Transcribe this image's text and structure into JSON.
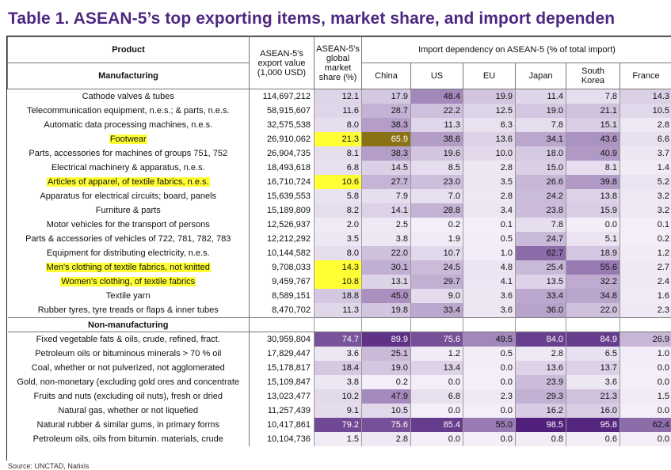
{
  "title": "Table 1. ASEAN-5’s top exporting items, market share, and import dependen",
  "source": "Source: UNCTAD, Natixis",
  "header": {
    "product": "Product",
    "export_value": "ASEAN-5's export value (1,000 USD)",
    "global_share": "ASEAN-5's global market share (%)",
    "dependency": "Import dependency on ASEAN-5 (% of total import)",
    "countries": [
      "China",
      "US",
      "EU",
      "Japan",
      "South Korea",
      "France"
    ]
  },
  "sections": [
    {
      "label": "Manufacturing",
      "rows": [
        {
          "name": "Cathode valves & tubes",
          "export": "114,697,212",
          "values": [
            "12.1",
            "17.9",
            "48.4",
            "19.9",
            "11.4",
            "7.8",
            "14.3"
          ]
        },
        {
          "name": "Telecommunication equipment, n.e.s.; & parts, n.e.s.",
          "export": "58,915,607",
          "values": [
            "11.6",
            "28.7",
            "22.2",
            "12.5",
            "19.0",
            "21.1",
            "10.5"
          ]
        },
        {
          "name": "Automatic data processing machines, n.e.s.",
          "export": "32,575,538",
          "values": [
            "8.0",
            "38.3",
            "11.3",
            "6.3",
            "7.8",
            "15.1",
            "2.8"
          ]
        },
        {
          "name": "Footwear",
          "export": "26,910,062",
          "values": [
            "21.3",
            "65.9",
            "38.6",
            "13.6",
            "34.1",
            "43.6",
            "6.6"
          ],
          "highlight": true
        },
        {
          "name": "Parts, accessories for machines of groups 751, 752",
          "export": "26,904,735",
          "values": [
            "8.1",
            "38.3",
            "19.6",
            "10.0",
            "18.0",
            "40.9",
            "3.7"
          ]
        },
        {
          "name": "Electrical machinery & apparatus, n.e.s.",
          "export": "18,493,618",
          "values": [
            "6.8",
            "14.5",
            "8.5",
            "2.8",
            "15.0",
            "8.1",
            "1.4"
          ]
        },
        {
          "name": "Articles of apparel, of textile fabrics, n.e.s.",
          "export": "16,710,724",
          "values": [
            "10.6",
            "27.7",
            "23.0",
            "3.5",
            "26.6",
            "39.8",
            "5.2"
          ],
          "highlight": true
        },
        {
          "name": "Apparatus for electrical circuits; board, panels",
          "export": "15,639,553",
          "values": [
            "5.8",
            "7.9",
            "7.0",
            "2.8",
            "24.2",
            "13.8",
            "3.2"
          ]
        },
        {
          "name": "Furniture & parts",
          "export": "15,189,809",
          "values": [
            "8.2",
            "14.1",
            "28.8",
            "3.4",
            "23.8",
            "15.9",
            "3.2"
          ]
        },
        {
          "name": "Motor vehicles for the transport of persons",
          "export": "12,526,937",
          "values": [
            "2.0",
            "2.5",
            "0.2",
            "0.1",
            "7.8",
            "0.0",
            "0.1"
          ]
        },
        {
          "name": "Parts & accessories of vehicles of 722, 781, 782, 783",
          "export": "12,212,292",
          "values": [
            "3.5",
            "3.8",
            "1.9",
            "0.5",
            "24.7",
            "5.1",
            "0.2"
          ]
        },
        {
          "name": "Equipment for distributing electricity, n.e.s.",
          "export": "10,144,582",
          "values": [
            "8.0",
            "22.0",
            "10.7",
            "1.0",
            "62.7",
            "18.9",
            "1.2"
          ]
        },
        {
          "name": "Men's clothing of textile fabrics, not knitted",
          "export": "9,708,033",
          "values": [
            "14.3",
            "30.1",
            "24.5",
            "4.8",
            "25.4",
            "55.6",
            "2.7"
          ],
          "highlight": true
        },
        {
          "name": "Women's clothing, of textile fabrics",
          "export": "9,459,767",
          "values": [
            "10.8",
            "13.1",
            "29.7",
            "4.1",
            "13.5",
            "32.2",
            "2.4"
          ],
          "highlight": true
        },
        {
          "name": "Textile yarn",
          "export": "8,589,151",
          "values": [
            "18.8",
            "45.0",
            "9.0",
            "3.6",
            "33.4",
            "34.8",
            "1.6"
          ]
        },
        {
          "name": "Rubber tyres, tyre treads or flaps & inner tubes",
          "export": "8,470,702",
          "values": [
            "11.3",
            "19.8",
            "33.4",
            "3.6",
            "36.0",
            "22.0",
            "2.3"
          ]
        }
      ]
    },
    {
      "label": "Non-manufacturing",
      "rows": [
        {
          "name": "Fixed vegetable fats & oils, crude, refined, fract.",
          "export": "30,959,804",
          "values": [
            "74.7",
            "89.9",
            "75.6",
            "49.5",
            "84.0",
            "84.9",
            "26.9"
          ]
        },
        {
          "name": "Petroleum oils or bituminous minerals > 70 % oil",
          "export": "17,829,447",
          "values": [
            "3.6",
            "25.1",
            "1.2",
            "0.5",
            "2.8",
            "6.5",
            "1.0"
          ]
        },
        {
          "name": "Coal, whether or not pulverized, not agglomerated",
          "export": "15,178,817",
          "values": [
            "18.4",
            "19.0",
            "13.4",
            "0.0",
            "13.6",
            "13.7",
            "0.0"
          ]
        },
        {
          "name": "Gold, non-monetary (excluding gold ores and concentrate",
          "export": "15,109,847",
          "values": [
            "3.8",
            "0.2",
            "0.0",
            "0.0",
            "23.9",
            "3.6",
            "0.0"
          ]
        },
        {
          "name": "Fruits and nuts (excluding oil nuts), fresh or dried",
          "export": "13,023,477",
          "values": [
            "10.2",
            "47.9",
            "6.8",
            "2.3",
            "29.3",
            "21.3",
            "1.5"
          ]
        },
        {
          "name": "Natural gas, whether or not liquefied",
          "export": "11,257,439",
          "values": [
            "9.1",
            "10.5",
            "0.0",
            "0.0",
            "16.2",
            "16.0",
            "0.0"
          ]
        },
        {
          "name": "Natural rubber & similar gums, in primary forms",
          "export": "10,417,861",
          "values": [
            "79.2",
            "75.6",
            "85.4",
            "55.0",
            "98.5",
            "95.8",
            "62.4"
          ]
        },
        {
          "name": "Petroleum oils, oils from bitumin. materials, crude",
          "export": "10,104,736",
          "values": [
            "1.5",
            "2.8",
            "0.0",
            "0.0",
            "0.8",
            "0.6",
            "0.0"
          ]
        }
      ]
    }
  ],
  "colors": {
    "title": "#4f2781",
    "highlight": "#ffff33",
    "cell_light": "#f3eef8",
    "cell_dark": "#4e1d7a",
    "highlight_cell": "#8a7214"
  }
}
